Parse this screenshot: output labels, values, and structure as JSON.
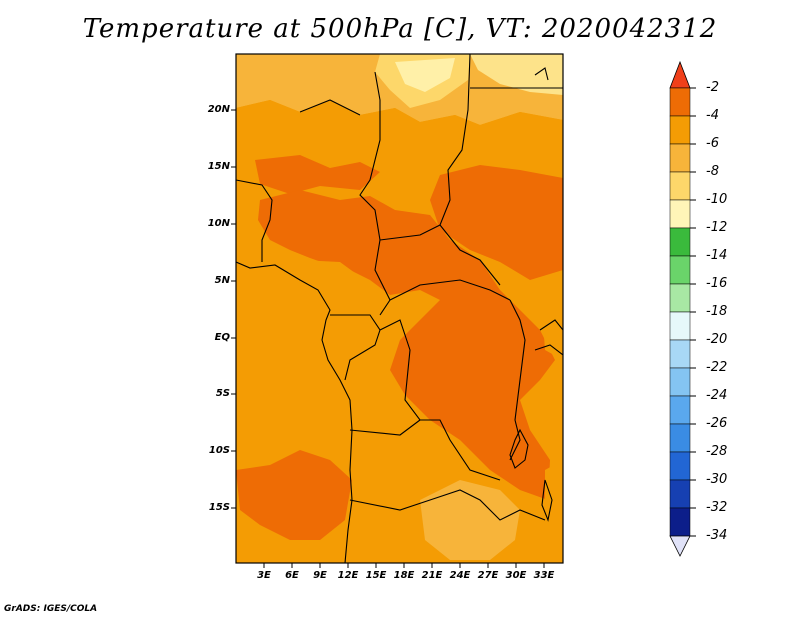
{
  "title": "Temperature at 500hPa [C], VT: 2020042312",
  "credit": "GrADS: IGES/COLA",
  "map": {
    "latitude_labels": [
      "20N",
      "15N",
      "10N",
      "5N",
      "EQ",
      "5S",
      "10S",
      "15S"
    ],
    "longitude_labels": [
      "3E",
      "6E",
      "9E",
      "12E",
      "15E",
      "18E",
      "21E",
      "24E",
      "27E",
      "30E",
      "33E"
    ],
    "field": "temperature",
    "level": "500hPa",
    "units": "C"
  },
  "colorbar": {
    "labels": [
      "-2",
      "-4",
      "-6",
      "-8",
      "-10",
      "-12",
      "-14",
      "-16",
      "-18",
      "-20",
      "-22",
      "-24",
      "-26",
      "-28",
      "-30",
      "-32",
      "-34"
    ],
    "colors": [
      "#f0401a",
      "#ee6c05",
      "#f49c04",
      "#f7b43a",
      "#fdd76a",
      "#fff5b8",
      "#3aba3c",
      "#6ad46a",
      "#a8e8a4",
      "#e6f8fa",
      "#a8d8f6",
      "#84c4f2",
      "#5aa8ee",
      "#3a8ce4",
      "#2266d4",
      "#1640b2",
      "#0c1e8a",
      "#e0e2f8"
    ]
  }
}
